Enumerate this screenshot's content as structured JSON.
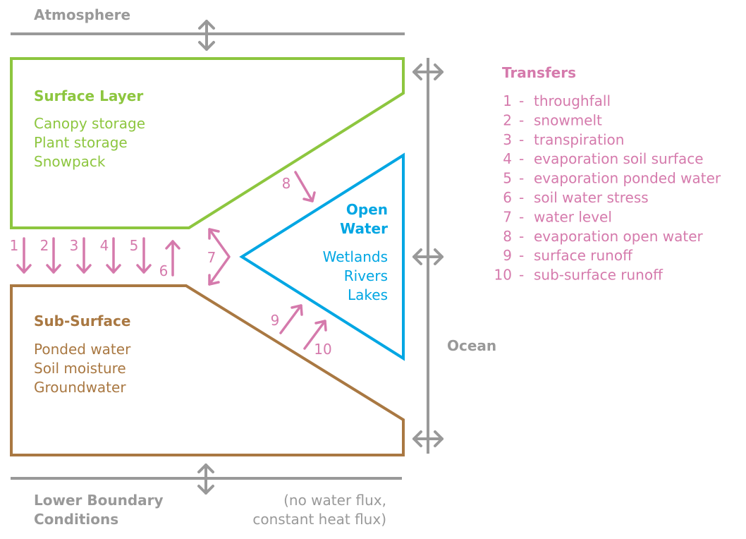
{
  "colors": {
    "surface": "#8dc63f",
    "subsurface": "#a97842",
    "openwater": "#00a6e3",
    "transfer": "#d57aac",
    "boundary": "#999999"
  },
  "atmosphere": {
    "label": "Atmosphere"
  },
  "surface_layer": {
    "title": "Surface Layer",
    "items": [
      "Canopy storage",
      "Plant storage",
      "Snowpack"
    ]
  },
  "open_water": {
    "title_line1": "Open",
    "title_line2": "Water",
    "items": [
      "Wetlands",
      "Rivers",
      "Lakes"
    ]
  },
  "sub_surface": {
    "title": "Sub-Surface",
    "items": [
      "Ponded water",
      "Soil moisture",
      "Groundwater"
    ]
  },
  "ocean": {
    "label": "Ocean"
  },
  "lower_boundary": {
    "label_line1": "Lower Boundary",
    "label_line2": "Conditions",
    "note_line1": "(no water flux,",
    "note_line2": "constant heat flux)"
  },
  "flux_numbers": [
    "1",
    "2",
    "3",
    "4",
    "5",
    "6",
    "7",
    "8",
    "9",
    "10"
  ],
  "transfers": {
    "title": "Transfers",
    "items": [
      {
        "num": "1",
        "label": "throughfall"
      },
      {
        "num": "2",
        "label": "snowmelt"
      },
      {
        "num": "3",
        "label": "transpiration"
      },
      {
        "num": "4",
        "label": "evaporation soil surface"
      },
      {
        "num": "5",
        "label": "evaporation ponded water"
      },
      {
        "num": "6",
        "label": "soil water stress"
      },
      {
        "num": "7",
        "label": "water level"
      },
      {
        "num": "8",
        "label": "evaporation open water"
      },
      {
        "num": "9",
        "label": "surface runoff"
      },
      {
        "num": "10",
        "label": "sub-surface runoff"
      }
    ]
  }
}
